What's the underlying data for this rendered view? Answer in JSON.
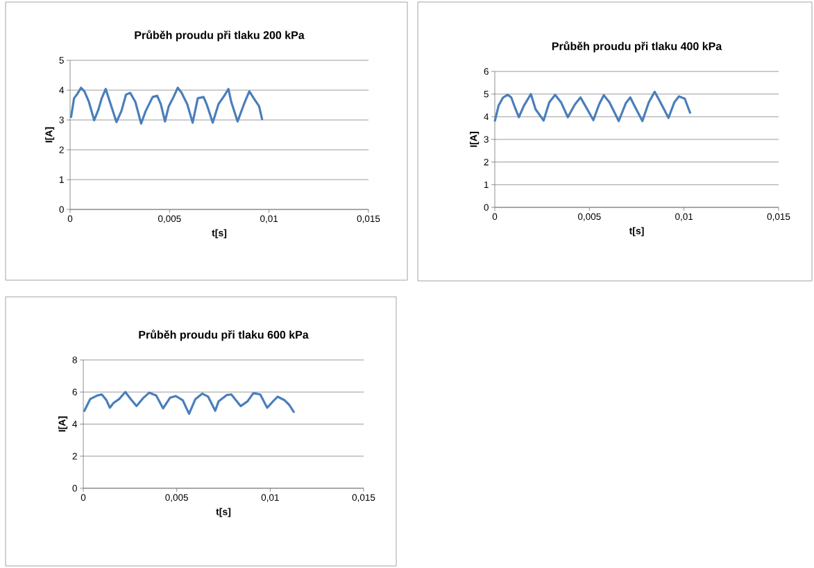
{
  "chart_data": [
    {
      "type": "line",
      "title": "Průběh proudu při  tlaku 200 kPa",
      "xlabel": "t[s]",
      "ylabel": "I[A]",
      "xlim": [
        0,
        0.015
      ],
      "ylim": [
        0,
        5
      ],
      "xticks": [
        0,
        {
          "value": 0.005,
          "label": "0,005"
        },
        {
          "value": 0.01,
          "label": "0,01"
        },
        {
          "value": 0.015,
          "label": "0,015"
        }
      ],
      "yticks": [
        0,
        1,
        2,
        3,
        4,
        5
      ],
      "grid": "y",
      "x": [
        5e-05,
        0.0002,
        0.00037,
        0.00055,
        0.00072,
        0.00095,
        0.00121,
        0.00142,
        0.00159,
        0.00179,
        0.002,
        0.00233,
        0.00258,
        0.00281,
        0.00302,
        0.00328,
        0.00357,
        0.0038,
        0.00415,
        0.00438,
        0.00456,
        0.00477,
        0.00496,
        0.0052,
        0.00541,
        0.0056,
        0.00589,
        0.00616,
        0.00642,
        0.00671,
        0.00688,
        0.00717,
        0.00746,
        0.00775,
        0.00796,
        0.0081,
        0.00842,
        0.00874,
        0.00901,
        0.00927,
        0.0095,
        0.00965
      ],
      "series": [
        {
          "color": "#4a7ebb",
          "values": [
            3.1,
            3.73,
            3.88,
            4.08,
            3.96,
            3.6,
            2.99,
            3.34,
            3.73,
            4.04,
            3.61,
            2.93,
            3.3,
            3.85,
            3.91,
            3.61,
            2.88,
            3.3,
            3.77,
            3.81,
            3.53,
            2.95,
            3.46,
            3.77,
            4.08,
            3.92,
            3.53,
            2.91,
            3.73,
            3.77,
            3.5,
            2.91,
            3.53,
            3.81,
            4.04,
            3.61,
            2.95,
            3.53,
            3.96,
            3.69,
            3.46,
            3.03
          ]
        }
      ]
    },
    {
      "type": "line",
      "title": "Průběh proudu při  tlaku 400 kPa",
      "xlabel": "t[s]",
      "ylabel": "I[A]",
      "xlim": [
        0,
        0.015
      ],
      "ylim": [
        0,
        6
      ],
      "xticks": [
        0,
        {
          "value": 0.005,
          "label": "0,005"
        },
        {
          "value": 0.01,
          "label": "0,01"
        },
        {
          "value": 0.015,
          "label": "0,015"
        }
      ],
      "yticks": [
        0,
        1,
        2,
        3,
        4,
        5,
        6
      ],
      "grid": "y",
      "x": [
        1e-05,
        0.0002,
        0.00044,
        0.00068,
        0.00087,
        0.00105,
        0.00127,
        0.00154,
        0.00191,
        0.00215,
        0.00258,
        0.00288,
        0.00319,
        0.0035,
        0.00386,
        0.00423,
        0.00453,
        0.00478,
        0.00521,
        0.00551,
        0.00576,
        0.00606,
        0.00655,
        0.00692,
        0.00716,
        0.00741,
        0.0078,
        0.00814,
        0.00845,
        0.00869,
        0.00918,
        0.00949,
        0.00973,
        0.01004,
        0.01032
      ],
      "series": [
        {
          "color": "#4a7ebb",
          "values": [
            3.83,
            4.49,
            4.85,
            4.97,
            4.85,
            4.44,
            3.98,
            4.49,
            5.0,
            4.34,
            3.83,
            4.64,
            4.97,
            4.64,
            3.98,
            4.54,
            4.85,
            4.49,
            3.85,
            4.54,
            4.95,
            4.64,
            3.81,
            4.59,
            4.85,
            4.44,
            3.81,
            4.64,
            5.1,
            4.74,
            3.95,
            4.64,
            4.9,
            4.8,
            4.18
          ]
        }
      ]
    },
    {
      "type": "line",
      "title": "Průběh proudu při  tlaku 600 kPa",
      "xlabel": "t[s]",
      "ylabel": "I[A]",
      "xlim": [
        0,
        0.015
      ],
      "ylim": [
        0,
        8
      ],
      "xticks": [
        0,
        {
          "value": 0.005,
          "label": "0,005"
        },
        {
          "value": 0.01,
          "label": "0,01"
        },
        {
          "value": 0.015,
          "label": "0,015"
        }
      ],
      "yticks": [
        0,
        2,
        4,
        6,
        8
      ],
      "grid": "y",
      "x": [
        6e-05,
        0.00037,
        0.00074,
        0.00099,
        0.00124,
        0.00142,
        0.00161,
        0.00192,
        0.00225,
        0.00254,
        0.00285,
        0.00322,
        0.00353,
        0.0039,
        0.00427,
        0.00464,
        0.00495,
        0.00532,
        0.00566,
        0.006,
        0.00637,
        0.00668,
        0.00706,
        0.00724,
        0.00767,
        0.00792,
        0.00842,
        0.00879,
        0.0091,
        0.00947,
        0.00984,
        0.01021,
        0.0104,
        0.01077,
        0.01102,
        0.01126
      ],
      "series": [
        {
          "color": "#4a7ebb",
          "values": [
            4.83,
            5.56,
            5.78,
            5.85,
            5.49,
            5.02,
            5.31,
            5.56,
            6.0,
            5.56,
            5.12,
            5.64,
            5.96,
            5.78,
            4.98,
            5.64,
            5.75,
            5.49,
            4.64,
            5.56,
            5.9,
            5.71,
            4.83,
            5.42,
            5.81,
            5.85,
            5.12,
            5.42,
            5.93,
            5.85,
            5.02,
            5.49,
            5.71,
            5.49,
            5.2,
            4.76
          ]
        }
      ]
    }
  ]
}
